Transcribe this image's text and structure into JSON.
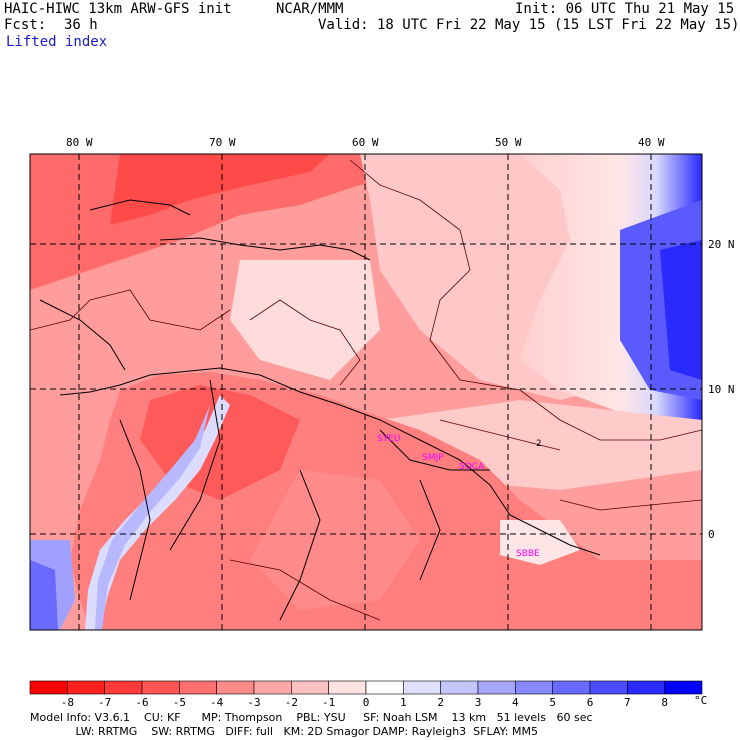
{
  "header": {
    "model": "HAIC-HIWC 13km ARW-GFS init",
    "org": "NCAR/MMM",
    "init": "Init: 06 UTC Thu 21 May 15",
    "fcst_label": "Fcst:",
    "fcst_value": "36 h",
    "valid": "Valid: 18 UTC Fri 22 May 15 (15 LST Fri 22 May 15)",
    "field": "Lifted index"
  },
  "map": {
    "lon_labels": [
      "80 W",
      "70 W",
      "60 W",
      "50 W",
      "40 W"
    ],
    "lat_labels": [
      "20 N",
      "10 N",
      "0"
    ],
    "cities": [
      "SYEU",
      "SMJP",
      "SOCA",
      "SBBE"
    ],
    "contour_label": "2"
  },
  "colorbar": {
    "ticks": [
      "-8",
      "-7",
      "-6",
      "-5",
      "-4",
      "-3",
      "-2",
      "-1",
      "0",
      "1",
      "2",
      "3",
      "4",
      "5",
      "6",
      "7",
      "8"
    ],
    "unit": "°C",
    "colors": [
      "#ff0000",
      "#ff2020",
      "#ff3a3a",
      "#ff5555",
      "#ff7070",
      "#ff8a8a",
      "#ffa6a6",
      "#ffc2c2",
      "#ffe2e2",
      "#ffffff",
      "#e0e0ff",
      "#c4c4ff",
      "#a6a6ff",
      "#8888ff",
      "#6a6aff",
      "#4c4cff",
      "#2a2aff",
      "#0000ff"
    ]
  },
  "footer": {
    "line1": "Model Info: V3.6.1    CU: KF      MP: Thompson    PBL: YSU     SF: Noah LSM    13 km   51 levels   60 sec",
    "line2": "             LW: RRTMG    SW: RRTMG   DIFF: full   KM: 2D Smagor DAMP: Rayleigh3  SFLAY: MM5"
  }
}
